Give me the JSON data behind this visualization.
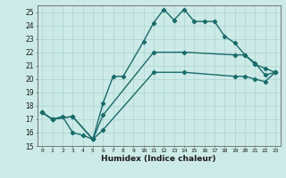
{
  "title": "",
  "xlabel": "Humidex (Indice chaleur)",
  "ylabel": "",
  "bg_color": "#cceae7",
  "grid_color": "#aad4d0",
  "line_color": "#1a6b6b",
  "marker": "D",
  "markersize": 2.2,
  "linewidth": 1.0,
  "xlim": [
    -0.5,
    23.5
  ],
  "ylim": [
    15,
    25.5
  ],
  "yticks": [
    15,
    16,
    17,
    18,
    19,
    20,
    21,
    22,
    23,
    24,
    25
  ],
  "xticks": [
    0,
    1,
    2,
    3,
    4,
    5,
    6,
    7,
    8,
    9,
    10,
    11,
    12,
    13,
    14,
    15,
    16,
    17,
    18,
    19,
    20,
    21,
    22,
    23
  ],
  "line1_x": [
    0,
    1,
    2,
    3,
    4,
    5,
    6,
    7,
    8,
    10,
    11,
    12,
    13,
    14,
    15,
    16,
    17,
    18,
    19,
    20,
    21,
    22,
    23
  ],
  "line1_y": [
    17.5,
    17.0,
    17.2,
    16.0,
    15.8,
    15.5,
    18.2,
    20.2,
    20.2,
    22.8,
    24.2,
    25.2,
    24.4,
    25.2,
    24.3,
    24.3,
    24.3,
    23.2,
    22.7,
    21.8,
    21.1,
    20.8,
    20.5
  ],
  "line2_x": [
    0,
    1,
    3,
    5,
    6,
    11,
    14,
    19,
    20,
    21,
    22,
    23
  ],
  "line2_y": [
    17.5,
    17.0,
    17.2,
    15.5,
    17.3,
    22.0,
    22.0,
    21.8,
    21.8,
    21.2,
    20.3,
    20.5
  ],
  "line3_x": [
    0,
    1,
    3,
    5,
    6,
    11,
    14,
    19,
    20,
    21,
    22,
    23
  ],
  "line3_y": [
    17.5,
    17.0,
    17.2,
    15.5,
    16.2,
    20.5,
    20.5,
    20.2,
    20.2,
    20.0,
    19.8,
    20.5
  ]
}
